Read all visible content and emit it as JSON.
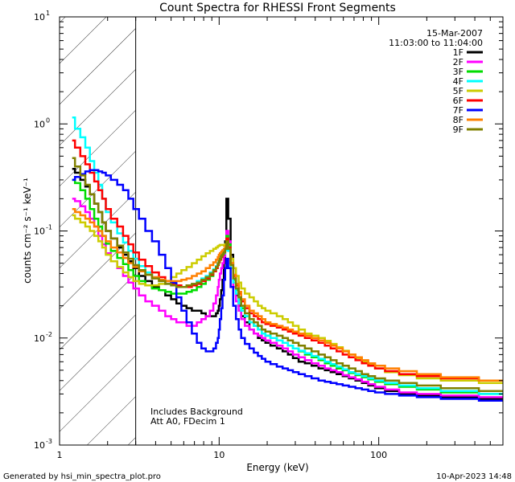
{
  "chart_data": {
    "type": "line",
    "title": "Count Spectra for RHESSI Front Segments",
    "xlabel": "Energy (keV)",
    "ylabel": "counts cm⁻² s⁻¹ keV⁻¹",
    "xscale": "log",
    "yscale": "log",
    "xlim": [
      1,
      600
    ],
    "ylim": [
      0.001,
      10
    ],
    "x_ticks": [
      {
        "value": 1,
        "label": "1"
      },
      {
        "value": 10,
        "label": "10"
      },
      {
        "value": 100,
        "label": "100"
      }
    ],
    "y_ticks": [
      {
        "value": 10,
        "label": "10",
        "exp": "1"
      },
      {
        "value": 1,
        "label": "10",
        "exp": "0"
      },
      {
        "value": 0.1,
        "label": "10",
        "exp": "-1"
      },
      {
        "value": 0.01,
        "label": "10",
        "exp": "-2"
      },
      {
        "value": 0.001,
        "label": "10",
        "exp": "-3"
      }
    ],
    "hatched_below_keV": 3,
    "annotations": {
      "date": "15-Mar-2007",
      "time_range": "11:03:00 to 11:04:00",
      "background_note": "Includes Background",
      "attenuator_note": "Att A0, FDecim 1"
    },
    "legend_position": "top-right",
    "series": [
      {
        "name": "1F",
        "color": "#000000",
        "values": [
          0.38,
          0.35,
          0.3,
          0.26,
          0.22,
          0.18,
          0.15,
          0.12,
          0.1,
          0.085,
          0.07,
          0.06,
          0.052,
          0.045,
          0.038,
          0.034,
          0.03,
          0.028,
          0.025,
          0.023,
          0.021,
          0.02,
          0.019,
          0.018,
          0.018,
          0.017,
          0.016,
          0.016,
          0.016,
          0.017,
          0.018,
          0.02,
          0.023,
          0.028,
          0.035,
          0.05,
          0.08,
          0.2,
          0.13,
          0.06,
          0.035,
          0.025,
          0.02,
          0.016,
          0.014,
          0.012,
          0.011,
          0.01,
          0.0095,
          0.009,
          0.0085,
          0.008,
          0.0075,
          0.007,
          0.0065,
          0.006,
          0.0058,
          0.0055,
          0.0052,
          0.005,
          0.0048,
          0.0046,
          0.0044,
          0.0042,
          0.004,
          0.0038,
          0.0036,
          0.0034,
          0.0032,
          0.003,
          0.0029,
          0.0028,
          0.0027
        ]
      },
      {
        "name": "2F",
        "color": "#ff00ff",
        "values": [
          0.2,
          0.19,
          0.17,
          0.15,
          0.13,
          0.11,
          0.09,
          0.075,
          0.062,
          0.052,
          0.045,
          0.038,
          0.033,
          0.029,
          0.025,
          0.022,
          0.02,
          0.018,
          0.016,
          0.015,
          0.014,
          0.014,
          0.013,
          0.013,
          0.014,
          0.015,
          0.016,
          0.018,
          0.021,
          0.025,
          0.03,
          0.035,
          0.04,
          0.045,
          0.05,
          0.058,
          0.07,
          0.1,
          0.08,
          0.05,
          0.03,
          0.022,
          0.018,
          0.015,
          0.013,
          0.012,
          0.011,
          0.0105,
          0.01,
          0.0095,
          0.009,
          0.0085,
          0.008,
          0.0075,
          0.007,
          0.0066,
          0.0062,
          0.0058,
          0.0055,
          0.0052,
          0.005,
          0.0048,
          0.0045,
          0.0043,
          0.0041,
          0.0039,
          0.0037,
          0.0035,
          0.0033,
          0.0031,
          0.003,
          0.0029,
          0.0028
        ]
      },
      {
        "name": "3F",
        "color": "#00dd00",
        "values": [
          0.3,
          0.28,
          0.24,
          0.2,
          0.16,
          0.13,
          0.11,
          0.09,
          0.076,
          0.065,
          0.056,
          0.049,
          0.043,
          0.038,
          0.034,
          0.031,
          0.029,
          0.028,
          0.027,
          0.026,
          0.026,
          0.026,
          0.027,
          0.028,
          0.03,
          0.032,
          0.035,
          0.038,
          0.042,
          0.046,
          0.05,
          0.054,
          0.058,
          0.062,
          0.065,
          0.068,
          0.075,
          0.09,
          0.075,
          0.05,
          0.035,
          0.028,
          0.023,
          0.019,
          0.016,
          0.014,
          0.013,
          0.012,
          0.011,
          0.0105,
          0.01,
          0.0095,
          0.009,
          0.0085,
          0.008,
          0.0075,
          0.007,
          0.0066,
          0.0062,
          0.0058,
          0.0055,
          0.0052,
          0.005,
          0.0047,
          0.0045,
          0.0043,
          0.0041,
          0.0039,
          0.0037,
          0.0035,
          0.0033,
          0.0031,
          0.003
        ]
      },
      {
        "name": "4F",
        "color": "#00ffff",
        "values": [
          1.15,
          0.9,
          0.75,
          0.6,
          0.45,
          0.35,
          0.27,
          0.2,
          0.15,
          0.12,
          0.095,
          0.078,
          0.065,
          0.055,
          0.047,
          0.041,
          0.037,
          0.034,
          0.032,
          0.031,
          0.03,
          0.03,
          0.031,
          0.032,
          0.034,
          0.036,
          0.038,
          0.041,
          0.044,
          0.047,
          0.05,
          0.053,
          0.056,
          0.058,
          0.06,
          0.062,
          0.066,
          0.075,
          0.065,
          0.045,
          0.033,
          0.026,
          0.021,
          0.018,
          0.016,
          0.014,
          0.013,
          0.012,
          0.011,
          0.0105,
          0.01,
          0.0095,
          0.009,
          0.0085,
          0.008,
          0.0076,
          0.0072,
          0.0068,
          0.0064,
          0.006,
          0.0057,
          0.0054,
          0.0051,
          0.0048,
          0.0046,
          0.0044,
          0.0042,
          0.004,
          0.0038,
          0.0036,
          0.0034,
          0.0032,
          0.003
        ]
      },
      {
        "name": "5F",
        "color": "#cccc00",
        "values": [
          0.14,
          0.13,
          0.12,
          0.11,
          0.1,
          0.09,
          0.08,
          0.07,
          0.06,
          0.052,
          0.046,
          0.041,
          0.037,
          0.034,
          0.032,
          0.031,
          0.031,
          0.032,
          0.034,
          0.037,
          0.04,
          0.043,
          0.046,
          0.05,
          0.054,
          0.058,
          0.062,
          0.065,
          0.068,
          0.07,
          0.072,
          0.073,
          0.074,
          0.074,
          0.074,
          0.073,
          0.075,
          0.08,
          0.07,
          0.055,
          0.045,
          0.038,
          0.033,
          0.029,
          0.026,
          0.024,
          0.022,
          0.02,
          0.019,
          0.018,
          0.017,
          0.016,
          0.015,
          0.014,
          0.013,
          0.012,
          0.011,
          0.0105,
          0.01,
          0.0094,
          0.0088,
          0.0082,
          0.0076,
          0.007,
          0.0065,
          0.006,
          0.0056,
          0.0052,
          0.0048,
          0.0045,
          0.0042,
          0.004,
          0.0038
        ]
      },
      {
        "name": "6F",
        "color": "#ff0000",
        "values": [
          0.7,
          0.6,
          0.5,
          0.42,
          0.35,
          0.29,
          0.24,
          0.2,
          0.16,
          0.13,
          0.11,
          0.09,
          0.075,
          0.063,
          0.054,
          0.047,
          0.041,
          0.037,
          0.034,
          0.032,
          0.031,
          0.03,
          0.03,
          0.031,
          0.032,
          0.034,
          0.036,
          0.039,
          0.042,
          0.045,
          0.048,
          0.051,
          0.054,
          0.057,
          0.06,
          0.063,
          0.068,
          0.085,
          0.07,
          0.05,
          0.038,
          0.031,
          0.026,
          0.022,
          0.019,
          0.017,
          0.016,
          0.015,
          0.014,
          0.0135,
          0.013,
          0.0125,
          0.012,
          0.0115,
          0.011,
          0.0105,
          0.01,
          0.0095,
          0.009,
          0.0085,
          0.008,
          0.0075,
          0.007,
          0.0066,
          0.0062,
          0.0058,
          0.0055,
          0.0052,
          0.0049,
          0.0046,
          0.0044,
          0.0042,
          0.004
        ]
      },
      {
        "name": "7F",
        "color": "#0000ff",
        "values": [
          0.3,
          0.32,
          0.34,
          0.36,
          0.37,
          0.37,
          0.36,
          0.35,
          0.33,
          0.3,
          0.27,
          0.24,
          0.2,
          0.16,
          0.13,
          0.1,
          0.08,
          0.06,
          0.045,
          0.033,
          0.024,
          0.018,
          0.014,
          0.011,
          0.009,
          0.008,
          0.0075,
          0.0075,
          0.008,
          0.009,
          0.01,
          0.012,
          0.015,
          0.019,
          0.025,
          0.035,
          0.045,
          0.055,
          0.045,
          0.03,
          0.02,
          0.015,
          0.012,
          0.01,
          0.0088,
          0.008,
          0.0073,
          0.0068,
          0.0064,
          0.006,
          0.0057,
          0.0054,
          0.0052,
          0.005,
          0.0048,
          0.0046,
          0.0044,
          0.0042,
          0.004,
          0.0039,
          0.0038,
          0.0037,
          0.0036,
          0.0035,
          0.0034,
          0.0033,
          0.0032,
          0.0031,
          0.003,
          0.0029,
          0.0028,
          0.0027,
          0.0026
        ]
      },
      {
        "name": "8F",
        "color": "#ff8000",
        "values": [
          0.16,
          0.15,
          0.14,
          0.13,
          0.12,
          0.11,
          0.1,
          0.09,
          0.08,
          0.07,
          0.063,
          0.056,
          0.05,
          0.046,
          0.042,
          0.039,
          0.037,
          0.035,
          0.034,
          0.034,
          0.034,
          0.035,
          0.036,
          0.038,
          0.04,
          0.042,
          0.045,
          0.048,
          0.051,
          0.054,
          0.057,
          0.06,
          0.062,
          0.064,
          0.066,
          0.068,
          0.072,
          0.078,
          0.068,
          0.05,
          0.039,
          0.032,
          0.027,
          0.023,
          0.02,
          0.018,
          0.017,
          0.016,
          0.015,
          0.014,
          0.0135,
          0.013,
          0.0125,
          0.012,
          0.0115,
          0.011,
          0.0105,
          0.01,
          0.0095,
          0.009,
          0.0085,
          0.008,
          0.0075,
          0.007,
          0.0066,
          0.0062,
          0.0058,
          0.0055,
          0.0052,
          0.0049,
          0.0046,
          0.0043,
          0.004
        ]
      },
      {
        "name": "9F",
        "color": "#808000",
        "values": [
          0.48,
          0.4,
          0.33,
          0.27,
          0.22,
          0.18,
          0.15,
          0.12,
          0.1,
          0.085,
          0.073,
          0.063,
          0.055,
          0.048,
          0.043,
          0.039,
          0.036,
          0.034,
          0.032,
          0.031,
          0.03,
          0.03,
          0.031,
          0.032,
          0.033,
          0.035,
          0.037,
          0.04,
          0.043,
          0.046,
          0.049,
          0.052,
          0.055,
          0.058,
          0.06,
          0.063,
          0.068,
          0.08,
          0.068,
          0.048,
          0.036,
          0.029,
          0.024,
          0.02,
          0.017,
          0.015,
          0.014,
          0.013,
          0.012,
          0.0115,
          0.011,
          0.0105,
          0.01,
          0.0095,
          0.009,
          0.0085,
          0.008,
          0.0075,
          0.007,
          0.0066,
          0.0062,
          0.0058,
          0.0055,
          0.0052,
          0.0049,
          0.0046,
          0.0044,
          0.0042,
          0.004,
          0.0038,
          0.0036,
          0.0034,
          0.0032
        ]
      }
    ],
    "series_x": [
      1.2,
      1.3,
      1.4,
      1.5,
      1.6,
      1.7,
      1.8,
      1.9,
      2,
      2.2,
      2.4,
      2.6,
      2.8,
      3,
      3.3,
      3.6,
      4,
      4.4,
      4.8,
      5.2,
      5.6,
      6,
      6.5,
      7,
      7.5,
      8,
      8.5,
      9,
      9.4,
      9.7,
      9.9,
      10,
      10.2,
      10.4,
      10.6,
      10.8,
      11,
      11.2,
      11.6,
      12,
      12.5,
      13,
      13.5,
      14,
      15,
      16,
      17,
      18,
      19,
      20,
      22,
      24,
      26,
      28,
      30,
      33,
      36,
      40,
      44,
      48,
      52,
      57,
      62,
      68,
      75,
      82,
      90,
      100,
      120,
      150,
      200,
      300,
      600
    ]
  },
  "footer": {
    "left": "Generated by hsi_min_spectra_plot.pro",
    "right": "10-Apr-2023 14:48"
  }
}
